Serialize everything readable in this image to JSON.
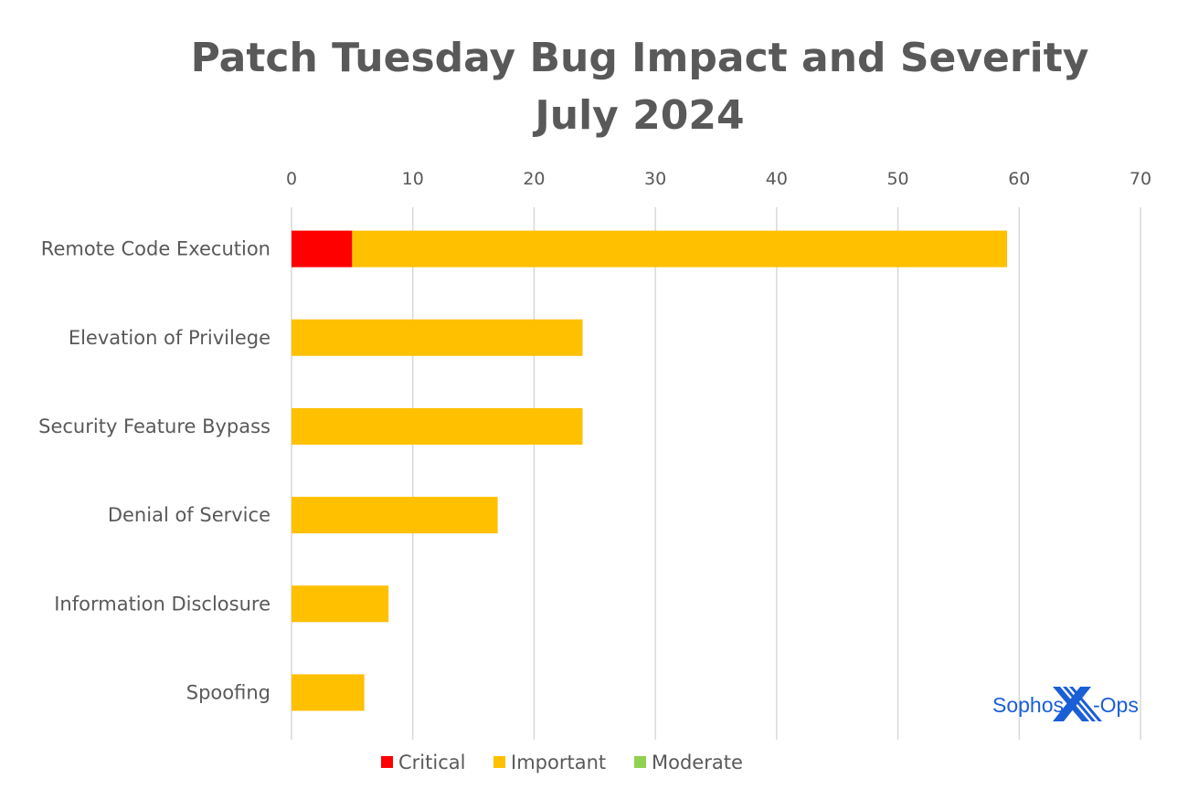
{
  "chart_data": {
    "type": "bar",
    "orientation": "horizontal",
    "stacked": true,
    "title": [
      "Patch Tuesday Bug Impact and Severity",
      "July 2024"
    ],
    "xlabel": "",
    "ylabel": "",
    "xlim": [
      0,
      70
    ],
    "xticks": [
      0,
      10,
      20,
      30,
      40,
      50,
      60,
      70
    ],
    "grid": true,
    "xaxis_position": "top",
    "categories": [
      "Remote Code Execution",
      "Elevation of Privilege",
      "Security Feature Bypass",
      "Denial of Service",
      "Information Disclosure",
      "Spoofing"
    ],
    "series": [
      {
        "name": "Critical",
        "color": "#FF0000",
        "values": [
          5,
          0,
          0,
          0,
          0,
          0
        ]
      },
      {
        "name": "Important",
        "color": "#FFC000",
        "values": [
          54,
          24,
          24,
          17,
          8,
          6
        ]
      },
      {
        "name": "Moderate",
        "color": "#92D050",
        "values": [
          0,
          0,
          0,
          0,
          0,
          0
        ]
      }
    ],
    "legend": "bottom",
    "logo": "Sophos X-Ops"
  }
}
